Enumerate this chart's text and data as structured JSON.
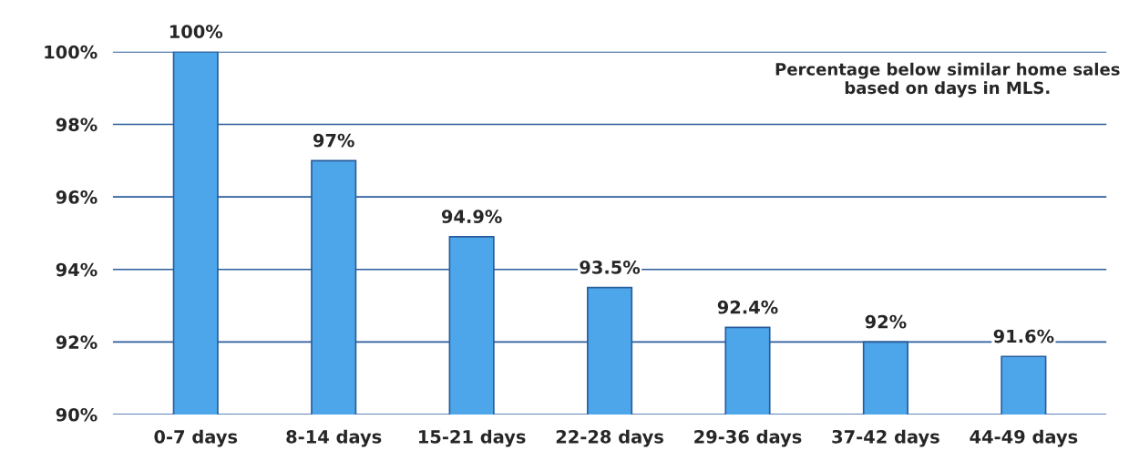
{
  "chart_data": {
    "type": "bar",
    "categories": [
      "0-7 days",
      "8-14 days",
      "15-21 days",
      "22-28 days",
      "29-36 days",
      "37-42 days",
      "44-49 days"
    ],
    "values": [
      100,
      97,
      94.9,
      93.5,
      92.4,
      92,
      91.6
    ],
    "value_labels": [
      "100%",
      "97%",
      "94.9%",
      "93.5%",
      "92.4%",
      "92%",
      "91.6%"
    ],
    "color": "#4da6ea",
    "ylim": [
      90,
      100
    ],
    "yticks": [
      {
        "value": 90,
        "label": "90%"
      },
      {
        "value": 92,
        "label": "92%"
      },
      {
        "value": 94,
        "label": "94%"
      },
      {
        "value": 96,
        "label": "96%"
      },
      {
        "value": 98,
        "label": "98%"
      },
      {
        "value": 100,
        "label": "100%"
      }
    ],
    "grid": "y",
    "annotations": [
      "Percentage below similar home sales based on days in MLS."
    ]
  }
}
